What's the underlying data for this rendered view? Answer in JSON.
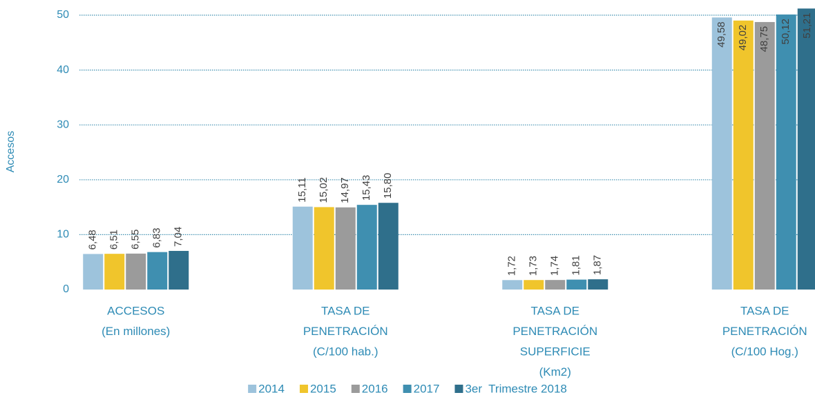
{
  "chart_data": {
    "type": "bar",
    "y_label": "Accesos",
    "categories": [
      [
        "ACCESOS",
        "(En millones)"
      ],
      [
        "TASA DE",
        "PENETRACIÓN",
        "(C/100 hab.)"
      ],
      [
        "TASA DE",
        "PENETRACIÓN",
        "SUPERFICIE",
        "(Km2)"
      ],
      [
        "TASA DE",
        "PENETRACIÓN",
        "(C/100 Hog.)"
      ]
    ],
    "series": [
      {
        "name": "2014",
        "color": "#9dc3dc",
        "values": [
          6.48,
          15.11,
          1.72,
          49.58
        ],
        "value_labels": [
          "6,48",
          "15,11",
          "1,72",
          "49,58"
        ]
      },
      {
        "name": "2015",
        "color": "#f0c52c",
        "values": [
          6.51,
          15.02,
          1.73,
          49.02
        ],
        "value_labels": [
          "6,51",
          "15,02",
          "1,73",
          "49,02"
        ]
      },
      {
        "name": "2016",
        "color": "#9b9b9b",
        "values": [
          6.55,
          14.97,
          1.74,
          48.75
        ],
        "value_labels": [
          "6,55",
          "14,97",
          "1,74",
          "48,75"
        ]
      },
      {
        "name": "2017",
        "color": "#3f8fb0",
        "values": [
          6.83,
          15.43,
          1.81,
          50.12
        ],
        "value_labels": [
          "6,83",
          "15,43",
          "1,81",
          "50,12"
        ]
      },
      {
        "name": "3er  Trimestre 2018",
        "color": "#2f6f8b",
        "values": [
          7.04,
          15.8,
          1.87,
          51.21
        ],
        "value_labels": [
          "7,04",
          "15,80",
          "1,87",
          "51,21"
        ]
      }
    ],
    "ylim": [
      0,
      50
    ],
    "yticks": [
      0,
      10,
      20,
      30,
      40,
      50
    ],
    "grid": true,
    "legend": "bottom"
  }
}
